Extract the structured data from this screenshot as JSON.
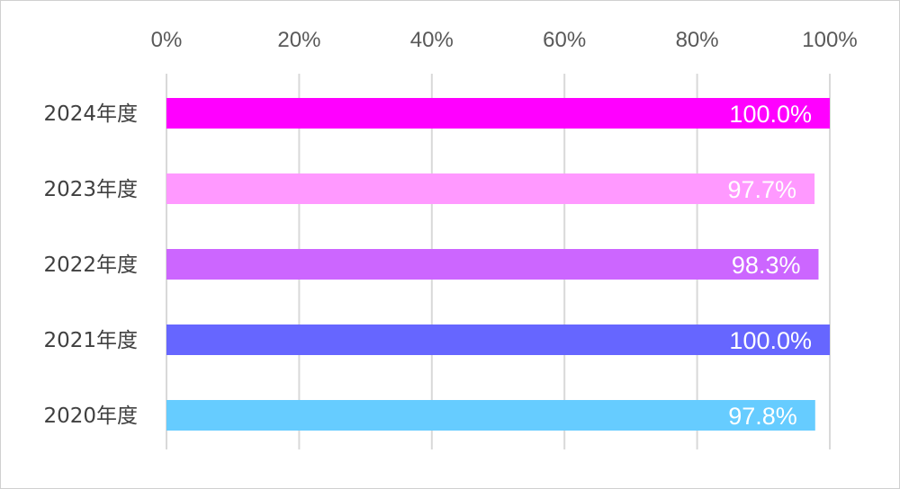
{
  "chart_data": {
    "type": "bar",
    "orientation": "horizontal",
    "x_axis_position": "top",
    "xlim": [
      0,
      100
    ],
    "x_ticks": [
      0,
      20,
      40,
      60,
      80,
      100
    ],
    "x_tick_labels": [
      "0%",
      "20%",
      "40%",
      "60%",
      "80%",
      "100%"
    ],
    "grid": true,
    "legend": "none",
    "categories": [
      "2024年度",
      "2023年度",
      "2022年度",
      "2021年度",
      "2020年度"
    ],
    "values": [
      100.0,
      97.7,
      98.3,
      100.0,
      97.8
    ],
    "data_labels": [
      "100.0%",
      "97.7%",
      "98.3%",
      "100.0%",
      "97.8%"
    ],
    "bar_colors": [
      "#ff00ff",
      "#ff99ff",
      "#cc66ff",
      "#6666ff",
      "#66ccff"
    ],
    "gridline_color": "#d9d9d9",
    "title": "",
    "xlabel": "",
    "ylabel": ""
  }
}
